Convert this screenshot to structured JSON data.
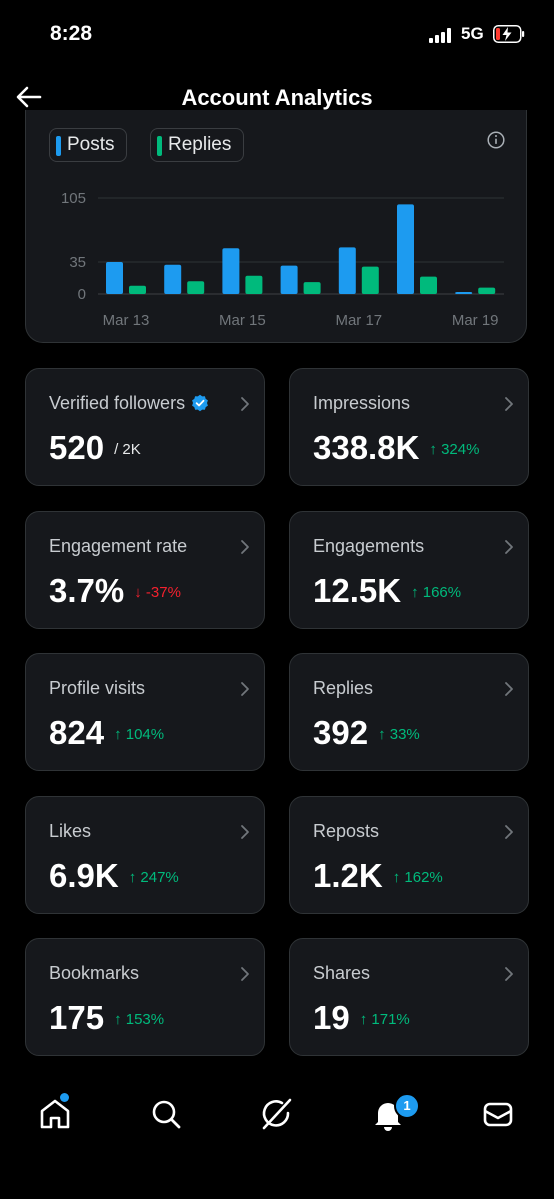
{
  "status_bar": {
    "time": "8:28",
    "network": "5G",
    "signal_icon": "signal-bars-icon",
    "battery_icon": "battery-charging-icon"
  },
  "header": {
    "title": "Account Analytics",
    "back_icon": "back-arrow-icon"
  },
  "chart_data": {
    "type": "bar",
    "categories": [
      "Mar 13",
      "Mar 14",
      "Mar 15",
      "Mar 16",
      "Mar 17",
      "Mar 18",
      "Mar 19"
    ],
    "x_tick_labels": [
      "Mar 13",
      "Mar 15",
      "Mar 17",
      "Mar 19"
    ],
    "y_ticks": [
      "105",
      "35",
      "0"
    ],
    "ylim": [
      0,
      105
    ],
    "series": [
      {
        "name": "Posts",
        "color": "#1d9bf0",
        "values": [
          35,
          32,
          50,
          31,
          51,
          98,
          2
        ]
      },
      {
        "name": "Replies",
        "color": "#00ba7c",
        "values": [
          9,
          14,
          20,
          13,
          30,
          19,
          7
        ]
      }
    ],
    "grid": true,
    "legend_position": "top-left"
  },
  "metrics": [
    {
      "label": "Verified followers",
      "value": "520",
      "sub": "/ 2K",
      "verified": true
    },
    {
      "label": "Impressions",
      "value": "338.8K",
      "change": "↑ 324%",
      "dir": "up"
    },
    {
      "label": "Engagement rate",
      "value": "3.7%",
      "change": "↓ -37%",
      "dir": "down"
    },
    {
      "label": "Engagements",
      "value": "12.5K",
      "change": "↑ 166%",
      "dir": "up"
    },
    {
      "label": "Profile visits",
      "value": "824",
      "change": "↑ 104%",
      "dir": "up"
    },
    {
      "label": "Replies",
      "value": "392",
      "change": "↑ 33%",
      "dir": "up"
    },
    {
      "label": "Likes",
      "value": "6.9K",
      "change": "↑ 247%",
      "dir": "up"
    },
    {
      "label": "Reposts",
      "value": "1.2K",
      "change": "↑ 162%",
      "dir": "up"
    },
    {
      "label": "Bookmarks",
      "value": "175",
      "change": "↑ 153%",
      "dir": "up"
    },
    {
      "label": "Shares",
      "value": "19",
      "change": "↑ 171%",
      "dir": "up"
    }
  ],
  "nav": {
    "items": [
      "home-icon",
      "search-icon",
      "grok-icon",
      "notifications-icon",
      "messages-icon"
    ],
    "notifications_badge": "1"
  },
  "colors": {
    "accent": "#1d9bf0",
    "positive": "#00ba7c",
    "negative": "#f4212e",
    "card_bg": "#16181c"
  }
}
